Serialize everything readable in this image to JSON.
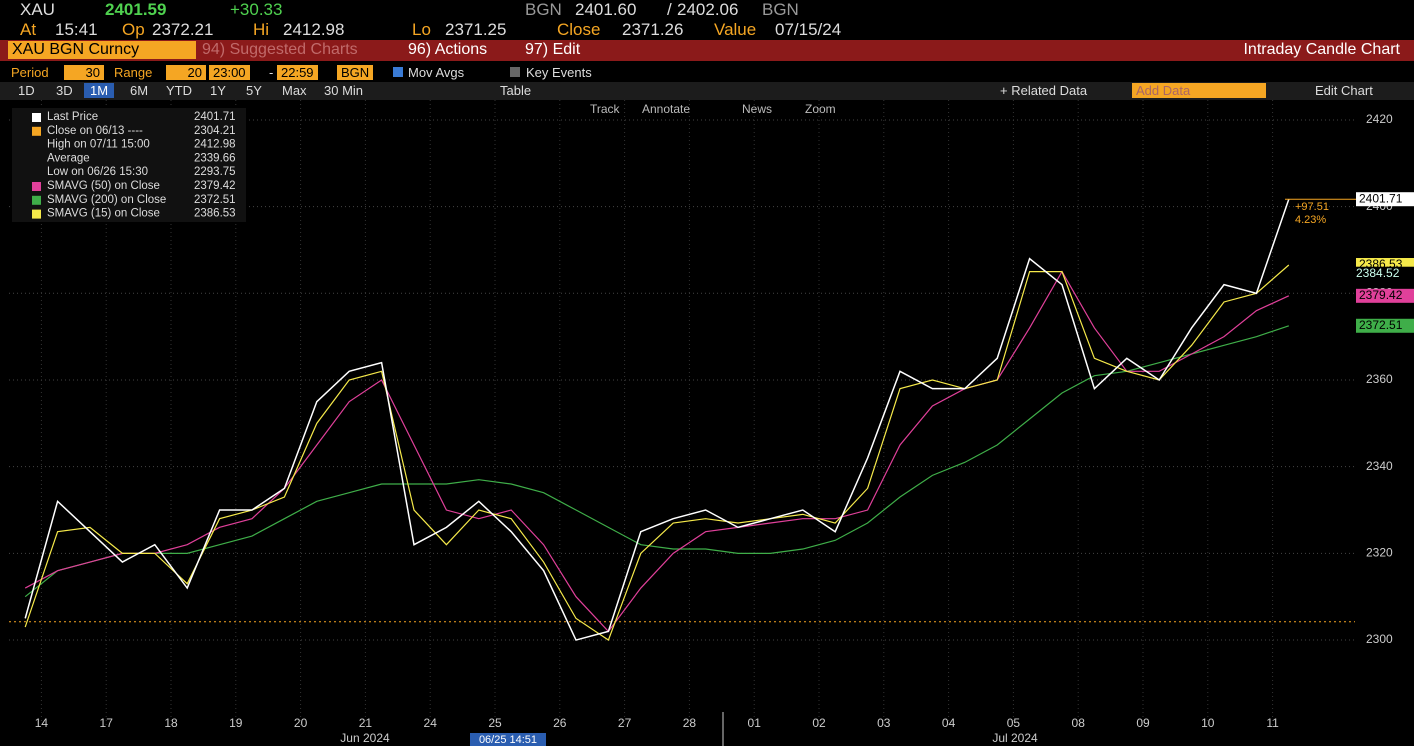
{
  "header": {
    "ticker": "XAU",
    "price": "2401.59",
    "change": "+30.33",
    "src1": "BGN",
    "bid": "2401.60",
    "sep": "/",
    "ask": "2402.06",
    "src2": "BGN",
    "at_label": "At",
    "at": "15:41",
    "op_label": "Op",
    "op": "2372.21",
    "hi_label": "Hi",
    "hi": "2412.98",
    "lo_label": "Lo",
    "lo": "2371.25",
    "close_label": "Close",
    "close": "2371.26",
    "value_label": "Value",
    "value": "07/15/24"
  },
  "toolbar": {
    "security": "XAU BGN Curncy",
    "suggested": "94) Suggested Charts",
    "actions": "96) Actions",
    "edit": "97) Edit",
    "chart_name": "Intraday Candle Chart",
    "period_label": "Period",
    "period": "30",
    "range_label": "Range",
    "range": "20",
    "from": "23:00",
    "dash": "-",
    "to": "22:59",
    "source": "BGN",
    "mov_avgs": "Mov Avgs",
    "key_events": "Key Events",
    "buttons": [
      "1D",
      "3D",
      "1M",
      "6M",
      "YTD",
      "1Y",
      "5Y",
      "Max",
      "30 Min"
    ],
    "table": "Table",
    "related": "+ Related Data",
    "add_data": "Add Data",
    "edit_chart": "Edit Chart",
    "tools": [
      "Track",
      "Annotate",
      "News",
      "Zoom"
    ]
  },
  "chart_data": {
    "type": "line",
    "categories": [
      "14",
      null,
      "17",
      null,
      "18",
      null,
      "19",
      null,
      "20",
      null,
      "21",
      null,
      "24",
      null,
      "25",
      null,
      "26",
      null,
      "27",
      null,
      "28",
      null,
      "01",
      null,
      "02",
      null,
      "03",
      null,
      "04",
      null,
      "05",
      null,
      "08",
      null,
      "09",
      null,
      "10",
      null,
      "11",
      null
    ],
    "month_labels": [
      "Jun 2024",
      "Jul 2024"
    ],
    "date_flag": "06/25 14:51",
    "ylim": [
      2280.4,
      2424.6
    ],
    "yticks": [
      2300,
      2320,
      2340,
      2360,
      2380,
      2400,
      2420
    ],
    "series": [
      {
        "name": "Last Price",
        "color": "#ffffff",
        "values": [
          2305,
          2332,
          2325,
          2318,
          2322,
          2312,
          2330,
          2330,
          2335,
          2355,
          2362,
          2364,
          2322,
          2326,
          2332,
          2325,
          2316,
          2300,
          2302,
          2325,
          2328,
          2330,
          2326,
          2328,
          2330,
          2325,
          2342,
          2362,
          2358,
          2358,
          2365,
          2388,
          2382,
          2358,
          2365,
          2360,
          2372,
          2382,
          2380,
          2401.71
        ]
      },
      {
        "name": "SMAVG (50)  on Close",
        "color": "#e0409a",
        "values": [
          2312,
          2316,
          2318,
          2320,
          2320,
          2322,
          2326,
          2328,
          2335,
          2345,
          2355,
          2360,
          2345,
          2330,
          2328,
          2330,
          2322,
          2310,
          2302,
          2312,
          2320,
          2325,
          2326,
          2327,
          2328,
          2328,
          2330,
          2345,
          2354,
          2358,
          2360,
          2372,
          2385,
          2372,
          2362,
          2362,
          2366,
          2370,
          2376,
          2379.42
        ]
      },
      {
        "name": "SMAVG (200)  on Close",
        "color": "#3fae49",
        "values": [
          2310,
          2316,
          2318,
          2320,
          2320,
          2320,
          2322,
          2324,
          2328,
          2332,
          2334,
          2336,
          2336,
          2336,
          2337,
          2336,
          2334,
          2330,
          2326,
          2322,
          2321,
          2321,
          2320,
          2320,
          2321,
          2323,
          2327,
          2333,
          2338,
          2341,
          2345,
          2351,
          2357,
          2361,
          2362,
          2364,
          2366,
          2368,
          2370,
          2372.51
        ]
      },
      {
        "name": "SMAVG (15)  on Close",
        "color": "#f5e94a",
        "values": [
          2303,
          2325,
          2326,
          2320,
          2320,
          2313,
          2328,
          2330,
          2333,
          2350,
          2360,
          2362,
          2330,
          2322,
          2330,
          2328,
          2318,
          2305,
          2300,
          2320,
          2327,
          2328,
          2327,
          2328,
          2329,
          2327,
          2335,
          2358,
          2360,
          2358,
          2360,
          2385,
          2385,
          2365,
          2362,
          2360,
          2368,
          2378,
          2380,
          2386.53
        ]
      }
    ],
    "stats": [
      {
        "label": "Close on 06/13 ----",
        "value": 2304.21,
        "color": "#f5a623"
      },
      {
        "label": "High on 07/11 15:00",
        "value": 2412.98
      },
      {
        "label": "Average",
        "value": 2339.66
      },
      {
        "label": "Low on 06/26 15:30",
        "value": 2293.75
      }
    ],
    "extra_tag": 2384.52,
    "change_note": "+97.51",
    "change_pct": "4.23%"
  }
}
